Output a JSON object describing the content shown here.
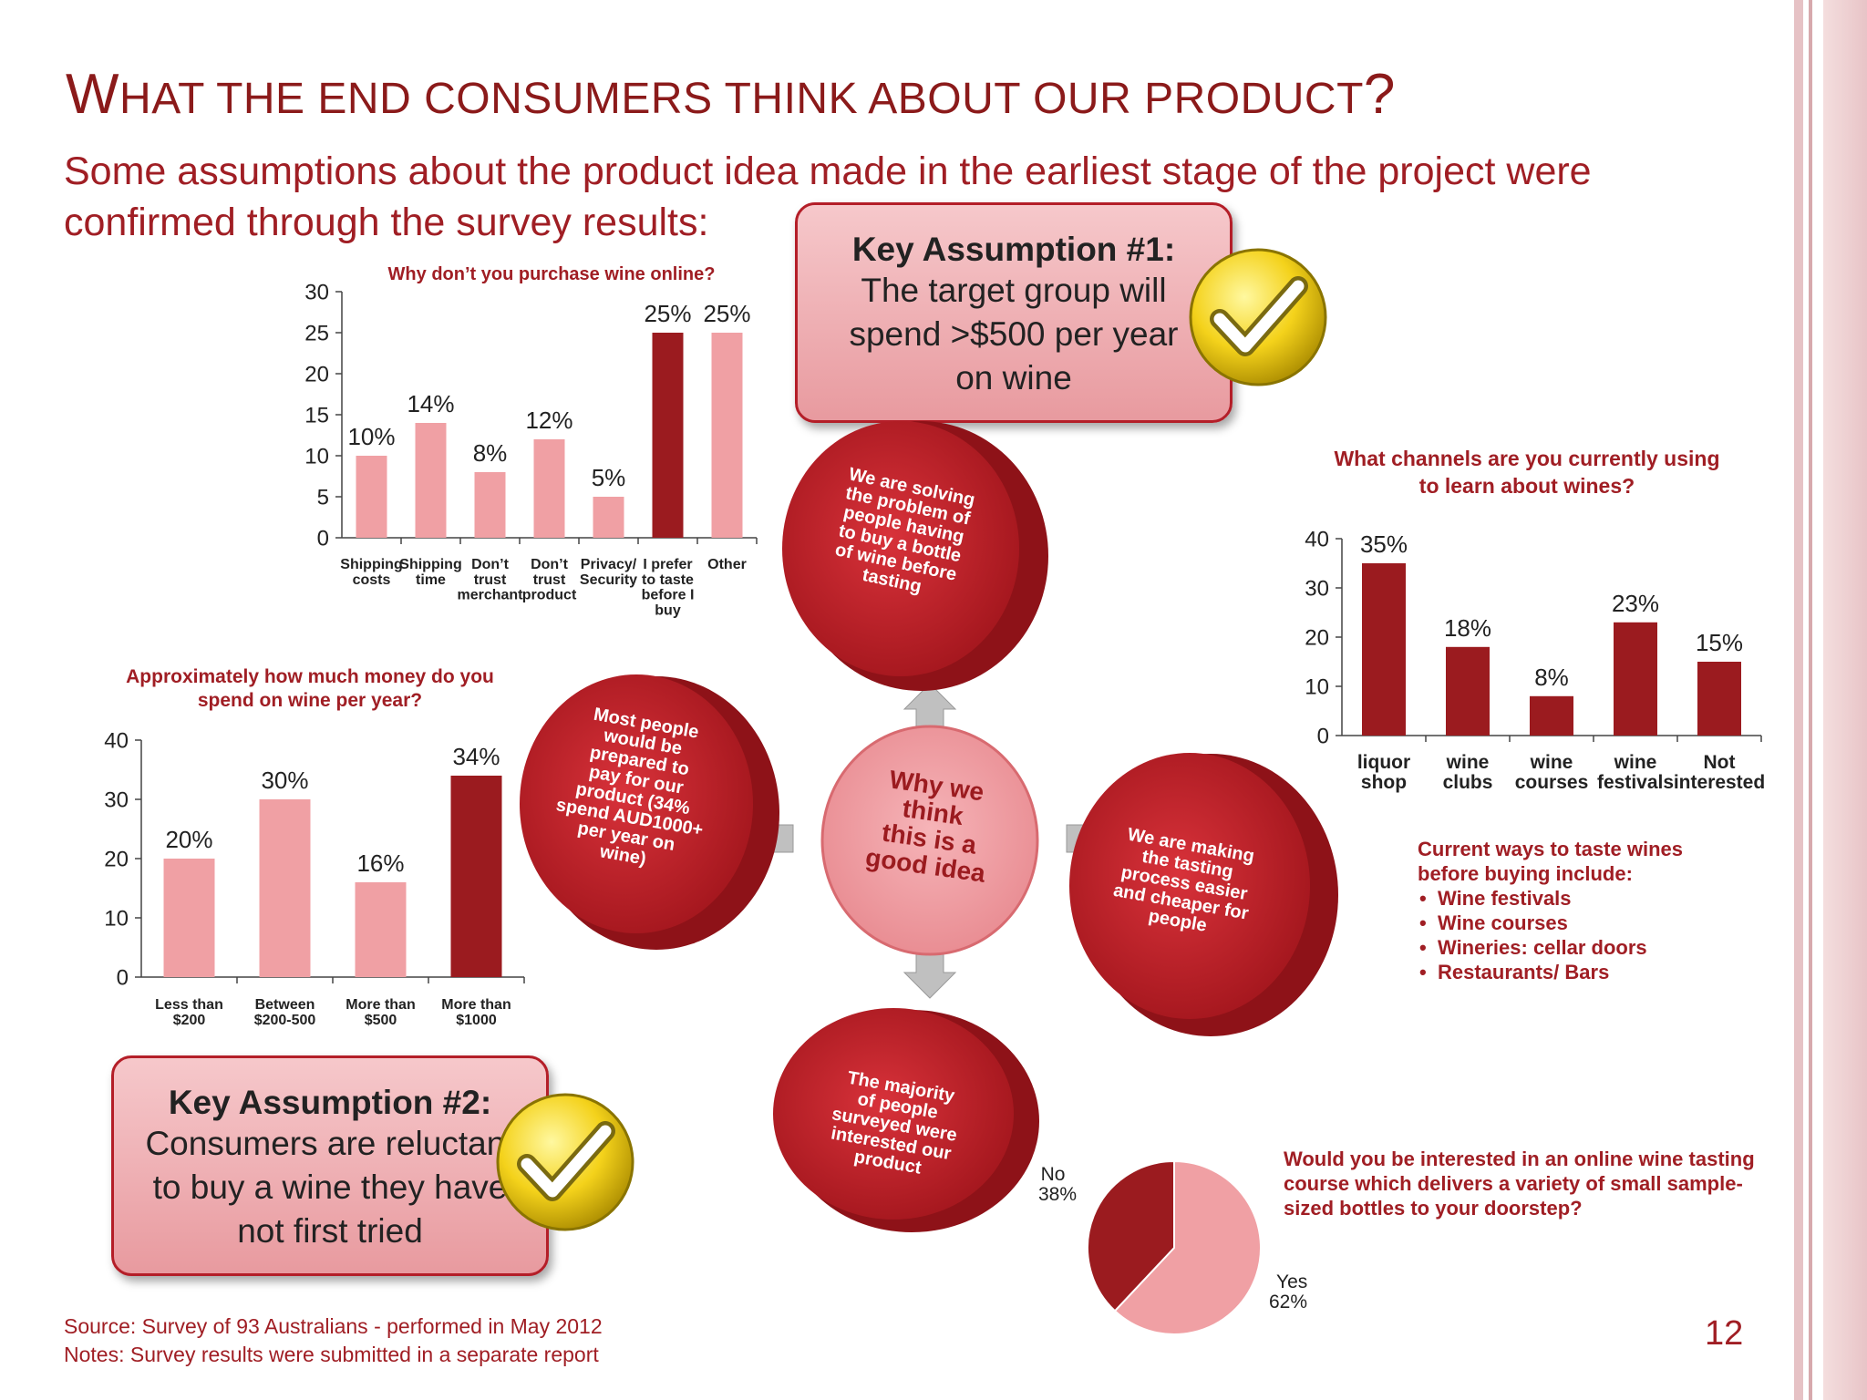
{
  "colors": {
    "accent": "#a01e24",
    "dark_bar": "#9b1b1f",
    "light_bar": "#f0a0a4",
    "border": "#d8a8ac"
  },
  "title": {
    "cap": "W",
    "rest": "HAT THE END CONSUMERS THINK ABOUT OUR PRODUCT",
    "end": "?"
  },
  "subtitle": "Some assumptions about the product idea made in the earliest stage of the project  were confirmed through the survey results:",
  "callout1": {
    "head": "Key Assumption #1:",
    "body": "The target group will spend >$500 per year on wine",
    "icon": "checkmark-icon"
  },
  "callout2": {
    "head": "Key Assumption #2:",
    "body": "Consumers are reluctant to buy a wine they have not first tried",
    "icon": "checkmark-icon"
  },
  "diagram": {
    "center": "Why we think this is a good idea",
    "top": "We are solving the problem of people having to buy a bottle of wine before tasting",
    "left": "Most people would be prepared to pay for our product (34% spend AUD1000+ per year on wine)",
    "right": "We are making the tasting process easier and cheaper for people",
    "bottom": "The majority of people surveyed were interested our product"
  },
  "ways": {
    "heading": "Current ways to taste wines before buying include:",
    "items": [
      "Wine festivals",
      "Wine courses",
      "Wineries: cellar doors",
      "Restaurants/ Bars"
    ]
  },
  "pie_question": "Would you be interested in an online wine tasting course which delivers a variety of small sample-sized bottles to your doorstep?",
  "source": "Source: Survey of 93 Australians - performed in May 2012",
  "notes": "Notes: Survey results were submitted in a separate report",
  "page_number": "12",
  "chart_data": [
    {
      "type": "bar",
      "title": "Why don’t you purchase wine online?",
      "categories": [
        "Shipping costs",
        "Shipping time",
        "Don’t trust merchant",
        "Don’t trust product",
        "Privacy/ Security",
        "I prefer to taste before I buy",
        "Other"
      ],
      "values": [
        10,
        14,
        8,
        12,
        5,
        25,
        25
      ],
      "labels": [
        "10%",
        "14%",
        "8%",
        "12%",
        "5%",
        "25%",
        "25%"
      ],
      "highlight": [
        false,
        false,
        false,
        false,
        false,
        true,
        false
      ],
      "yticks": [
        "0",
        "5",
        "10",
        "15",
        "20",
        "25",
        "30"
      ],
      "ylim": [
        0,
        30
      ]
    },
    {
      "type": "bar",
      "title": "Approximately how much money do you spend on wine per year?",
      "categories": [
        "Less than $200",
        "Between $200-500",
        "More than $500",
        "More than $1000"
      ],
      "values": [
        20,
        30,
        16,
        34
      ],
      "labels": [
        "20%",
        "30%",
        "16%",
        "34%"
      ],
      "highlight": [
        false,
        false,
        false,
        true
      ],
      "yticks": [
        "0",
        "10",
        "20",
        "30",
        "40"
      ],
      "ylim": [
        0,
        40
      ]
    },
    {
      "type": "bar",
      "title": "What channels are you currently using to learn about wines?",
      "categories": [
        "liquor shop",
        "wine clubs",
        "wine courses",
        "wine festivals",
        "Not interested"
      ],
      "values": [
        35,
        18,
        8,
        23,
        15
      ],
      "labels": [
        "35%",
        "18%",
        "8%",
        "23%",
        "15%"
      ],
      "highlight": [
        true,
        true,
        true,
        true,
        true
      ],
      "yticks": [
        "0",
        "10",
        "20",
        "30",
        "40"
      ],
      "ylim": [
        0,
        40
      ]
    },
    {
      "type": "pie",
      "slices": [
        {
          "name": "Yes",
          "value": 62,
          "label": "62%",
          "color": "#f0a0a4"
        },
        {
          "name": "No",
          "value": 38,
          "label": "38%",
          "color": "#9b1b1f"
        }
      ]
    }
  ]
}
